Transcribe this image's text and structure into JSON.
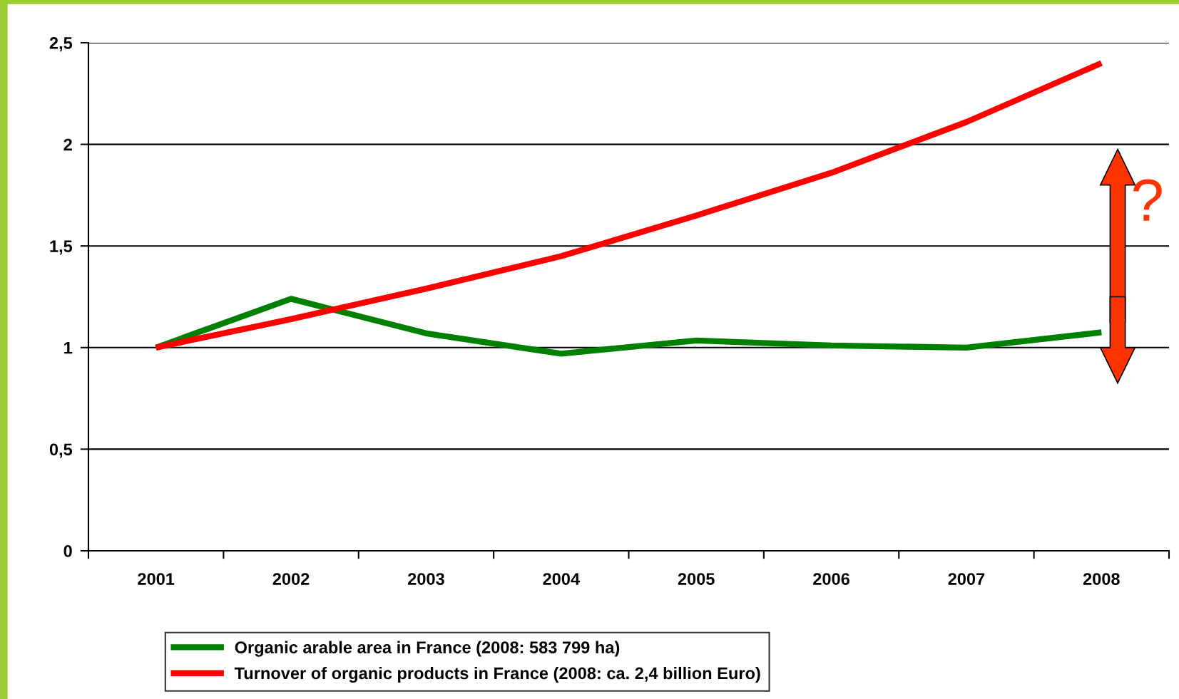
{
  "chart_data": {
    "type": "line",
    "categories": [
      "2001",
      "2002",
      "2003",
      "2004",
      "2005",
      "2006",
      "2007",
      "2008"
    ],
    "series": [
      {
        "name": "Organic arable area in France (2008: 583 799 ha)",
        "color": "#008000",
        "values": [
          1.0,
          1.24,
          1.07,
          0.97,
          1.035,
          1.01,
          1.0,
          1.075
        ]
      },
      {
        "name": "Turnover of organic products in France (2008: ca. 2,4 billion Euro)",
        "color": "#ff0000",
        "values": [
          1.0,
          1.14,
          1.29,
          1.45,
          1.65,
          1.86,
          2.11,
          2.4
        ]
      }
    ],
    "ylim": [
      0,
      2.5
    ],
    "yticks": [
      0,
      {
        "value": 0.5,
        "label": "0,5"
      },
      1,
      {
        "value": 1.5,
        "label": "1,5"
      },
      2,
      {
        "value": 2.5,
        "label": "2,5"
      }
    ],
    "grid": "y",
    "legend": "bottom",
    "marker": "none",
    "line_style": "solid",
    "annotations": [
      "?"
    ]
  }
}
